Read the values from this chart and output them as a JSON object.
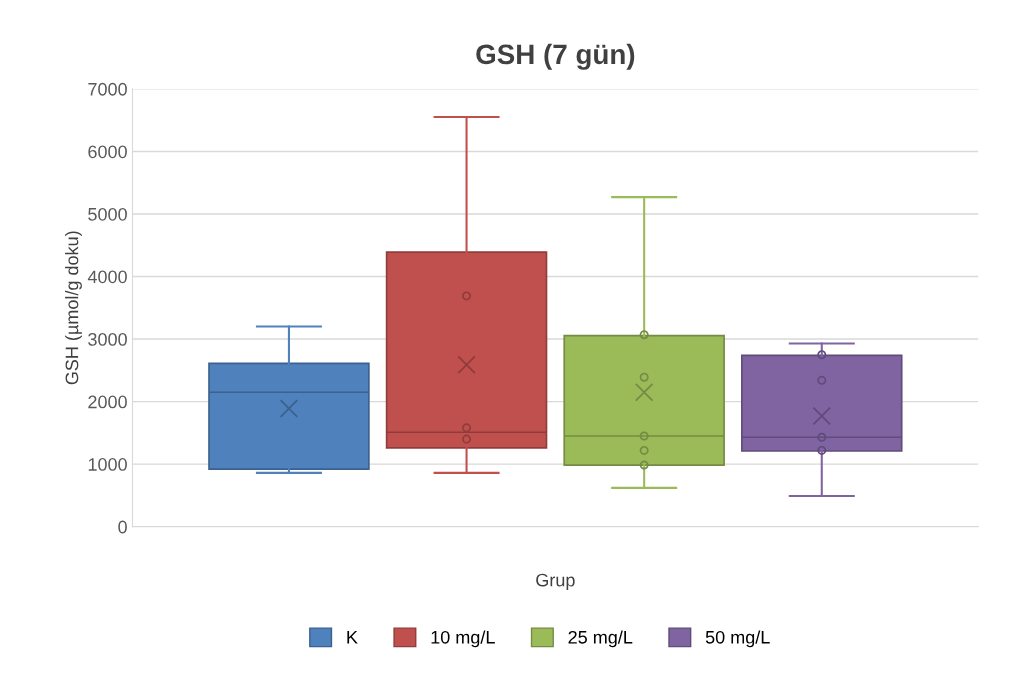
{
  "chart_data": {
    "type": "box",
    "title": "GSH (7 gün)",
    "xlabel": "Grup",
    "ylabel": "GSH (µmol/g doku)",
    "categories": [
      null
    ],
    "ylim": [
      0,
      7000
    ],
    "yticks": [
      0,
      1000,
      2000,
      3000,
      4000,
      5000,
      6000,
      7000
    ],
    "grid": "y",
    "legend": "bottom",
    "series": [
      {
        "name": "K",
        "color": "#4f81bd",
        "boxes": [
          {
            "low": 860,
            "q1": 920,
            "median": 2150,
            "q3": 2610,
            "high": 3200,
            "mean": 1890
          }
        ]
      },
      {
        "name": "10 mg/L",
        "color": "#c0504d",
        "boxes": [
          {
            "low": 860,
            "q1": 1260,
            "median": 1510,
            "q3": 4390,
            "high": 6550,
            "mean": 2590
          }
        ]
      },
      {
        "type": "scatter",
        "color": "#903c3a",
        "x": [
          null,
          null,
          null
        ],
        "values": [
          3690,
          1580,
          1400
        ]
      },
      {
        "name": "25 mg/L",
        "color": "#9bbb59",
        "boxes": [
          {
            "low": 620,
            "q1": 985,
            "median": 1450,
            "q3": 3055,
            "high": 5270,
            "mean": 2150
          }
        ]
      },
      {
        "type": "scatter",
        "color": "#748c43",
        "x": [
          null,
          null,
          null,
          null,
          null
        ],
        "values": [
          3070,
          2390,
          1450,
          1220,
          985
        ]
      },
      {
        "name": "50 mg/L",
        "color": "#8064a2",
        "boxes": [
          {
            "low": 490,
            "q1": 1210,
            "median": 1430,
            "q3": 2740,
            "high": 2930,
            "mean": 1770
          }
        ]
      },
      {
        "type": "scatter",
        "color": "#604b7a",
        "x": [
          null,
          null,
          null,
          null
        ],
        "values": [
          2750,
          2340,
          1430,
          1220
        ]
      }
    ]
  }
}
